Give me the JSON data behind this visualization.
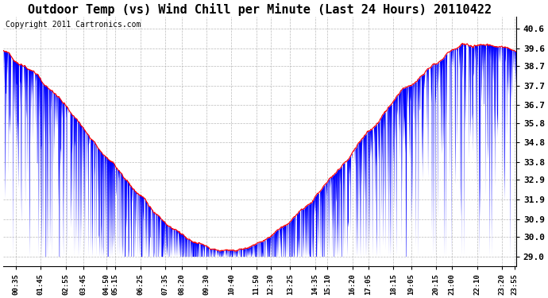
{
  "title": "Outdoor Temp (vs) Wind Chill per Minute (Last 24 Hours) 20110422",
  "copyright_text": "Copyright 2011 Cartronics.com",
  "yticks": [
    29.0,
    30.0,
    30.9,
    31.9,
    32.9,
    33.8,
    34.8,
    35.8,
    36.7,
    37.7,
    38.7,
    39.6,
    40.6
  ],
  "xtick_labels": [
    "00:35",
    "01:45",
    "02:55",
    "03:45",
    "04:50",
    "05:15",
    "06:25",
    "07:35",
    "08:20",
    "09:30",
    "10:40",
    "11:50",
    "12:30",
    "13:25",
    "14:35",
    "15:10",
    "16:20",
    "17:05",
    "18:15",
    "19:05",
    "20:15",
    "21:00",
    "22:10",
    "23:20",
    "23:55"
  ],
  "xtick_minutes": [
    35,
    105,
    175,
    225,
    290,
    315,
    385,
    455,
    500,
    570,
    640,
    710,
    750,
    805,
    875,
    910,
    980,
    1025,
    1095,
    1145,
    1215,
    1260,
    1330,
    1400,
    1435
  ],
  "ylim_min": 28.5,
  "ylim_max": 41.2,
  "bar_color": "#0000FF",
  "line_color": "#FF0000",
  "background_color": "#FFFFFF",
  "grid_color": "#AAAAAA",
  "title_fontsize": 11,
  "copyright_fontsize": 7
}
